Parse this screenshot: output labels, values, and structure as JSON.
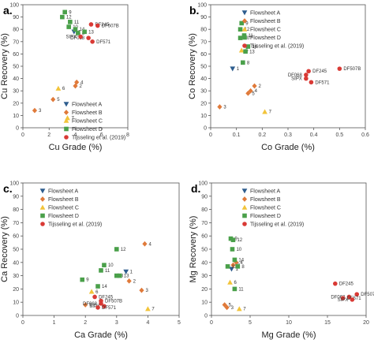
{
  "styles": {
    "Flowsheet A": {
      "shape": "triangle-down",
      "color": "#2e5d8e"
    },
    "Flowsheet B": {
      "shape": "diamond",
      "color": "#e07a3a"
    },
    "Flowsheet C": {
      "shape": "triangle-up",
      "color": "#f2c43a"
    },
    "Flowsheet D": {
      "shape": "square",
      "color": "#4aa04a"
    },
    "Tijsseling et al. (2019)": {
      "shape": "circle",
      "color": "#d93a35"
    }
  },
  "chart_data": [
    {
      "type": "scatter",
      "panel_label": "a.",
      "title": "",
      "xlabel": "Cu Grade (%)",
      "ylabel": "Cu Recovery (%)",
      "xlim": [
        0,
        8
      ],
      "ylim": [
        0,
        100
      ],
      "xticks": [
        0,
        2,
        4,
        6,
        8
      ],
      "yticks": [
        0,
        10,
        20,
        30,
        40,
        50,
        60,
        70,
        80,
        90,
        100
      ],
      "grid": false,
      "legend_position": "bottom-right",
      "series": [
        {
          "name": "Flowsheet A",
          "points": [
            {
              "x": 3.9,
              "y": 78,
              "label": "1"
            }
          ]
        },
        {
          "name": "Flowsheet B",
          "points": [
            {
              "x": 4.1,
              "y": 37,
              "label": "4"
            },
            {
              "x": 4.0,
              "y": 34,
              "label": "2"
            },
            {
              "x": 2.3,
              "y": 23,
              "label": "5"
            },
            {
              "x": 0.9,
              "y": 14,
              "label": "3"
            }
          ]
        },
        {
          "name": "Flowsheet C",
          "points": [
            {
              "x": 2.7,
              "y": 32,
              "label": "6"
            },
            {
              "x": 3.4,
              "y": 8,
              "label": "7"
            }
          ]
        },
        {
          "name": "Flowsheet D",
          "points": [
            {
              "x": 3.2,
              "y": 94,
              "label": "9"
            },
            {
              "x": 3.0,
              "y": 90,
              "label": "12"
            },
            {
              "x": 3.6,
              "y": 86,
              "label": "11"
            },
            {
              "x": 3.5,
              "y": 82,
              "label": "10"
            },
            {
              "x": 4.0,
              "y": 80,
              "label": "14"
            },
            {
              "x": 4.2,
              "y": 77,
              "label": "8"
            },
            {
              "x": 4.7,
              "y": 78,
              "label": "13"
            }
          ]
        },
        {
          "name": "Tijsseling et al. (2019)",
          "points": [
            {
              "x": 5.2,
              "y": 84,
              "label": "DF245"
            },
            {
              "x": 5.7,
              "y": 83,
              "label": "DF507B"
            },
            {
              "x": 5.0,
              "y": 73,
              "label": "DF068"
            },
            {
              "x": 4.4,
              "y": 74,
              "label": "SIPX"
            },
            {
              "x": 5.3,
              "y": 70,
              "label": "DF571"
            }
          ]
        }
      ]
    },
    {
      "type": "scatter",
      "panel_label": "b.",
      "title": "",
      "xlabel": "Co Grade (%)",
      "ylabel": "Co Recovery (%)",
      "xlim": [
        0,
        0.6
      ],
      "ylim": [
        0,
        100
      ],
      "xticks": [
        0,
        0.1,
        0.2,
        0.3,
        0.4,
        0.5,
        0.6
      ],
      "yticks": [
        0,
        10,
        20,
        30,
        40,
        50,
        60,
        70,
        80,
        90,
        100
      ],
      "grid": false,
      "legend_position": "top-right",
      "series": [
        {
          "name": "Flowsheet A",
          "points": [
            {
              "x": 0.085,
              "y": 48,
              "label": "1"
            }
          ]
        },
        {
          "name": "Flowsheet B",
          "points": [
            {
              "x": 0.17,
              "y": 34,
              "label": "2"
            },
            {
              "x": 0.155,
              "y": 30,
              "label": "4"
            },
            {
              "x": 0.145,
              "y": 28,
              "label": "5"
            },
            {
              "x": 0.035,
              "y": 17,
              "label": "3"
            }
          ]
        },
        {
          "name": "Flowsheet C",
          "points": [
            {
              "x": 0.12,
              "y": 63,
              "label": "6"
            },
            {
              "x": 0.21,
              "y": 13,
              "label": "7"
            }
          ]
        },
        {
          "name": "Flowsheet D",
          "points": [
            {
              "x": 0.12,
              "y": 85,
              "label": "9"
            },
            {
              "x": 0.115,
              "y": 80,
              "label": "12"
            },
            {
              "x": 0.13,
              "y": 75,
              "label": "11"
            },
            {
              "x": 0.115,
              "y": 73,
              "label": "10"
            },
            {
              "x": 0.145,
              "y": 66,
              "label": "14"
            },
            {
              "x": 0.135,
              "y": 62,
              "label": "13"
            },
            {
              "x": 0.125,
              "y": 53,
              "label": "8"
            }
          ]
        },
        {
          "name": "Tijsseling et al. (2019)",
          "points": [
            {
              "x": 0.38,
              "y": 46,
              "label": "DF245"
            },
            {
              "x": 0.5,
              "y": 48,
              "label": "DF507B"
            },
            {
              "x": 0.37,
              "y": 43,
              "label": "DF068"
            },
            {
              "x": 0.37,
              "y": 40,
              "label": "SIPX"
            },
            {
              "x": 0.39,
              "y": 37,
              "label": "DF571"
            }
          ]
        }
      ]
    },
    {
      "type": "scatter",
      "panel_label": "c.",
      "title": "",
      "xlabel": "Ca Grade (%)",
      "ylabel": "Ca Recovery (%)",
      "xlim": [
        0,
        5
      ],
      "ylim": [
        0,
        100
      ],
      "xticks": [
        0,
        1,
        2,
        3,
        4,
        5
      ],
      "yticks": [
        0,
        10,
        20,
        30,
        40,
        50,
        60,
        70,
        80,
        90,
        100
      ],
      "grid": false,
      "legend_position": "top-right",
      "series": [
        {
          "name": "Flowsheet A",
          "points": [
            {
              "x": 3.3,
              "y": 33,
              "label": "1"
            }
          ]
        },
        {
          "name": "Flowsheet B",
          "points": [
            {
              "x": 3.9,
              "y": 54,
              "label": "4"
            },
            {
              "x": 3.4,
              "y": 26,
              "label": "2"
            },
            {
              "x": 3.8,
              "y": 19,
              "label": "3"
            },
            {
              "x": 2.0,
              "y": 8,
              "label": "5"
            }
          ]
        },
        {
          "name": "Flowsheet C",
          "points": [
            {
              "x": 2.2,
              "y": 18,
              "label": "6"
            },
            {
              "x": 4.0,
              "y": 5,
              "label": "7"
            }
          ]
        },
        {
          "name": "Flowsheet D",
          "points": [
            {
              "x": 3.0,
              "y": 50,
              "label": "12"
            },
            {
              "x": 2.6,
              "y": 38,
              "label": "10"
            },
            {
              "x": 2.5,
              "y": 34,
              "label": "11"
            },
            {
              "x": 3.0,
              "y": 30,
              "label": "8"
            },
            {
              "x": 3.1,
              "y": 30,
              "label": "13"
            },
            {
              "x": 1.9,
              "y": 27,
              "label": "9"
            },
            {
              "x": 2.4,
              "y": 22,
              "label": "14"
            }
          ]
        },
        {
          "name": "Tijsseling et al. (2019)",
          "points": [
            {
              "x": 2.3,
              "y": 14,
              "label": "DF245"
            },
            {
              "x": 2.5,
              "y": 11,
              "label": "DF507B"
            },
            {
              "x": 2.5,
              "y": 9,
              "label": "DF068"
            },
            {
              "x": 2.6,
              "y": 7,
              "label": "SIPX"
            },
            {
              "x": 2.4,
              "y": 6,
              "label": "DF571"
            }
          ]
        }
      ]
    },
    {
      "type": "scatter",
      "panel_label": "d.",
      "title": "",
      "xlabel": "Mg Grade (%)",
      "ylabel": "Mg Recovery (%)",
      "xlim": [
        0,
        20
      ],
      "ylim": [
        0,
        100
      ],
      "xticks": [
        0,
        5,
        10,
        15,
        20
      ],
      "yticks": [
        0,
        10,
        20,
        30,
        40,
        50,
        60,
        70,
        80,
        90,
        100
      ],
      "grid": false,
      "legend_position": "top-right",
      "series": [
        {
          "name": "Flowsheet A",
          "points": [
            {
              "x": 2.6,
              "y": 35,
              "label": "1"
            }
          ]
        },
        {
          "name": "Flowsheet B",
          "points": [
            {
              "x": 3.2,
              "y": 40,
              "label": "4"
            },
            {
              "x": 2.8,
              "y": 38,
              "label": "2"
            },
            {
              "x": 1.7,
              "y": 8,
              "label": "5"
            },
            {
              "x": 2.0,
              "y": 6,
              "label": "3"
            }
          ]
        },
        {
          "name": "Flowsheet C",
          "points": [
            {
              "x": 2.4,
              "y": 25,
              "label": "6"
            },
            {
              "x": 3.6,
              "y": 5,
              "label": "7"
            }
          ]
        },
        {
          "name": "Flowsheet D",
          "points": [
            {
              "x": 2.5,
              "y": 58,
              "label": "9"
            },
            {
              "x": 2.8,
              "y": 57,
              "label": "12"
            },
            {
              "x": 2.7,
              "y": 50,
              "label": "10"
            },
            {
              "x": 3.0,
              "y": 42,
              "label": "14"
            },
            {
              "x": 2.1,
              "y": 37,
              "label": "13"
            },
            {
              "x": 3.4,
              "y": 37,
              "label": "8"
            },
            {
              "x": 3.0,
              "y": 20,
              "label": "11"
            }
          ]
        },
        {
          "name": "Tijsseling et al. (2019)",
          "points": [
            {
              "x": 16.0,
              "y": 24,
              "label": "DF245"
            },
            {
              "x": 18.8,
              "y": 16,
              "label": "DF507B"
            },
            {
              "x": 17.8,
              "y": 14,
              "label": "DF068"
            },
            {
              "x": 17.0,
              "y": 13,
              "label": "DF571"
            },
            {
              "x": 18.2,
              "y": 12,
              "label": "SIPX"
            }
          ]
        }
      ]
    }
  ]
}
